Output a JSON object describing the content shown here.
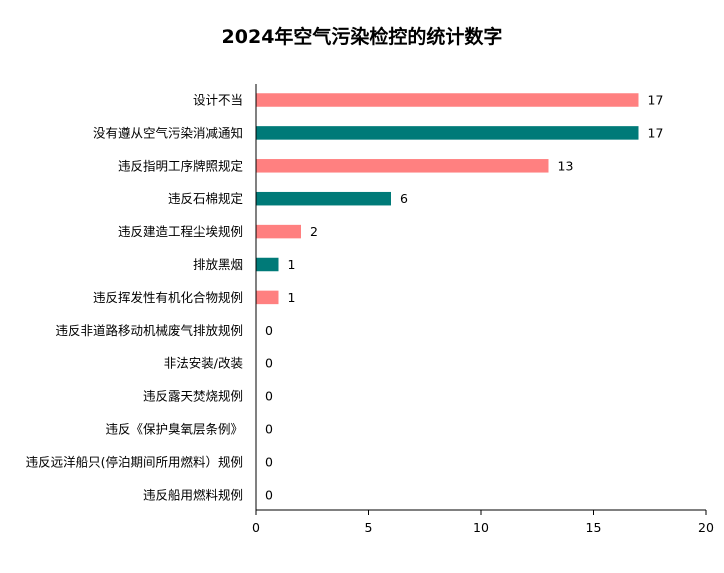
{
  "chart_data": {
    "type": "bar",
    "orientation": "horizontal",
    "title": "2024年空气污染检控的统计数字",
    "categories": [
      "设计不当",
      "没有遵从空气污染消减通知",
      "违反指明工序牌照规定",
      "违反石棉规定",
      "违反建造工程尘埃规例",
      "排放黑烟",
      "违反挥发性有机化合物规例",
      "违反非道路移动机械废气排放规例",
      "非法安装/改装",
      "违反露天焚烧规例",
      "违反《保护臭氧层条例》",
      "违反远洋船只(停泊期间所用燃料）规例",
      "违反船用燃料规例"
    ],
    "values": [
      17,
      17,
      13,
      6,
      2,
      1,
      1,
      0,
      0,
      0,
      0,
      0,
      0
    ],
    "xlim": [
      0,
      20
    ],
    "xticks": [
      0,
      5,
      10,
      15,
      20
    ],
    "bar_colors": [
      "#ff8080",
      "#007a78"
    ],
    "grid": false,
    "legend": "none"
  }
}
